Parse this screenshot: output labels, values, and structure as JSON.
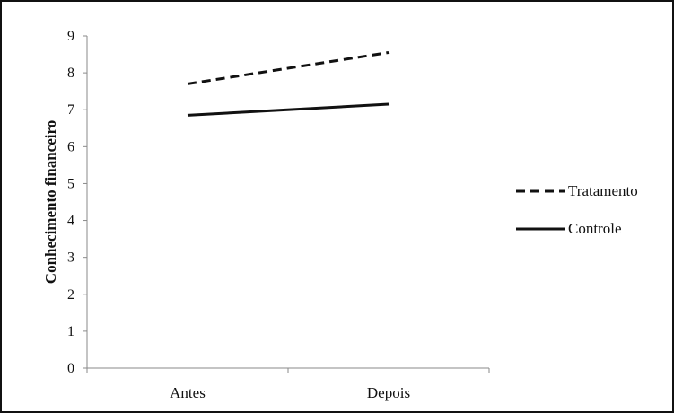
{
  "chart_data": {
    "type": "line",
    "title": "",
    "xlabel": "",
    "ylabel": "Conhecimento financeiro",
    "categories": [
      "Antes",
      "Depois"
    ],
    "ylim": [
      0,
      9
    ],
    "yticks": [
      0,
      1,
      2,
      3,
      4,
      5,
      6,
      7,
      8,
      9
    ],
    "grid": false,
    "legend_position": "right",
    "series": [
      {
        "name": "Tratamento",
        "values": [
          7.7,
          8.55
        ],
        "style": "dashed",
        "color": "#111111"
      },
      {
        "name": "Controle",
        "values": [
          6.85,
          7.15
        ],
        "style": "solid",
        "color": "#111111"
      }
    ]
  }
}
